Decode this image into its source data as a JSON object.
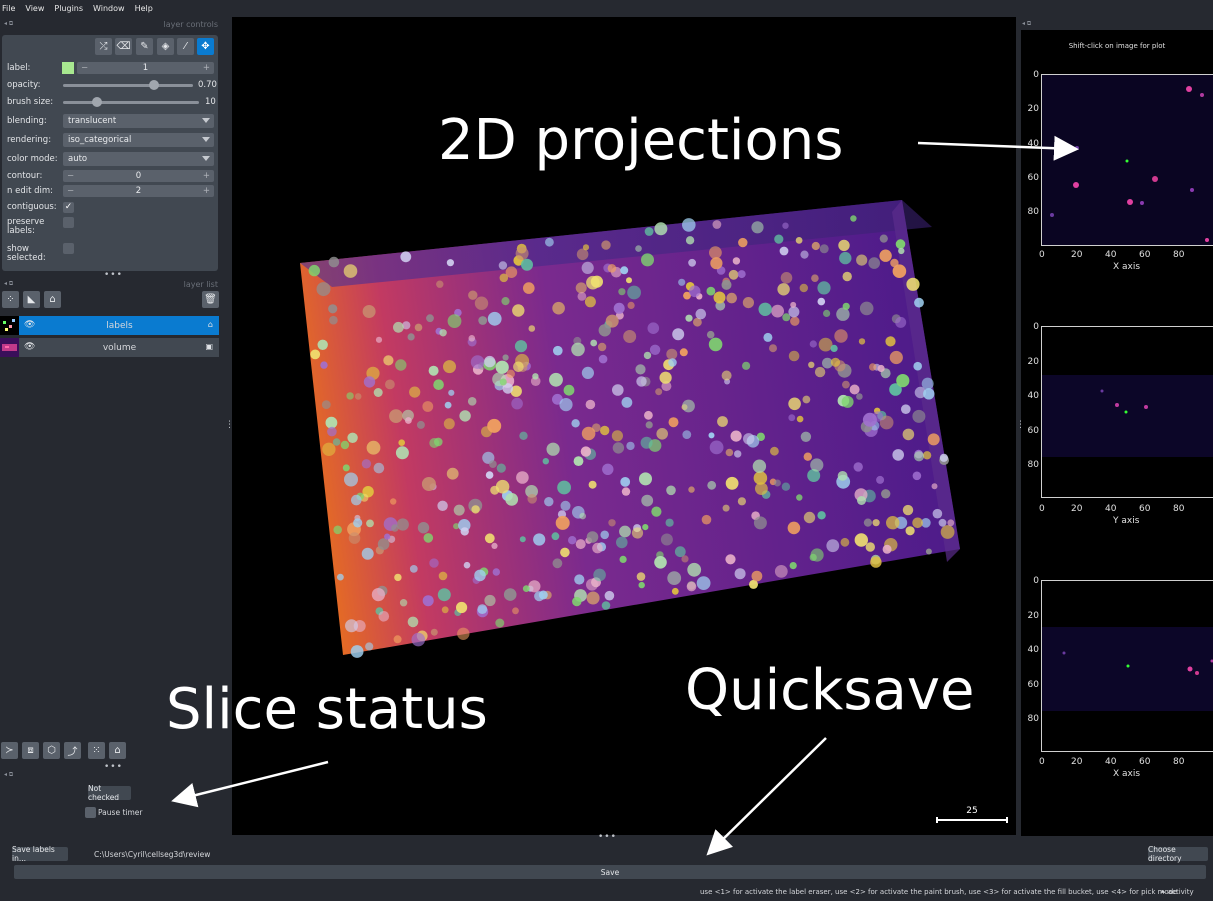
{
  "menu": [
    "File",
    "View",
    "Plugins",
    "Window",
    "Help"
  ],
  "layer_controls": {
    "title": "layer controls",
    "label": {
      "caption": "label:",
      "value": "1",
      "color": "#a8e890"
    },
    "opacity": {
      "caption": "opacity:",
      "value": "0.70",
      "fraction": 0.7
    },
    "brush_size": {
      "caption": "brush size:",
      "value": "10",
      "fraction": 0.25
    },
    "blending": {
      "caption": "blending:",
      "value": "translucent"
    },
    "rendering": {
      "caption": "rendering:",
      "value": "iso_categorical"
    },
    "color_mode": {
      "caption": "color mode:",
      "value": "auto"
    },
    "contour": {
      "caption": "contour:",
      "value": "0"
    },
    "n_edit_dim": {
      "caption": "n edit dim:",
      "value": "2"
    },
    "contiguous": {
      "caption": "contiguous:",
      "checked": true
    },
    "preserve_labels": {
      "caption": "preserve labels:",
      "checked": false
    },
    "show_selected": {
      "caption": "show selected:",
      "checked": false
    },
    "tools": [
      "shuffle-icon",
      "eraser-icon",
      "paint-brush-icon",
      "fill-bucket-icon",
      "color-picker-icon",
      "pan-zoom-icon"
    ],
    "active_tool": "pan-zoom-icon"
  },
  "layer_list": {
    "title": "layer list",
    "layers": [
      {
        "name": "labels",
        "selected": true,
        "type_icon": "label-icon"
      },
      {
        "name": "volume",
        "selected": false,
        "type_icon": "image-icon"
      }
    ]
  },
  "review": {
    "status_button": "Not checked",
    "pause_timer": "Pause timer"
  },
  "canvas": {
    "scale_bar": "25"
  },
  "plots": {
    "title": "Shift-click on image for plot",
    "panels": [
      {
        "xlabel": "X axis",
        "yticks": [
          "0",
          "20",
          "40",
          "60",
          "80"
        ],
        "xticks": [
          "0",
          "20",
          "40",
          "60",
          "80"
        ]
      },
      {
        "xlabel": "Y axis",
        "yticks": [
          "0",
          "20",
          "40",
          "60",
          "80"
        ],
        "xticks": [
          "0",
          "20",
          "40",
          "60",
          "80"
        ]
      },
      {
        "xlabel": "X axis",
        "yticks": [
          "0",
          "20",
          "40",
          "60",
          "80"
        ],
        "xticks": [
          "0",
          "20",
          "40",
          "60",
          "80"
        ]
      }
    ]
  },
  "bottom": {
    "save_labels_label": "Save labels in...",
    "path": "C:\\Users\\Cyril\\cellseg3d\\review",
    "choose_dir": "Choose directory",
    "save": "Save",
    "status": "use <1> for activate the label eraser, use <2> for activate the paint brush, use <3> for activate the fill bucket, use <4> for pick mode",
    "activity": "activity"
  },
  "annotations": {
    "projections": "2D projections",
    "slice_status": "Slice status",
    "quicksave": "Quicksave"
  }
}
